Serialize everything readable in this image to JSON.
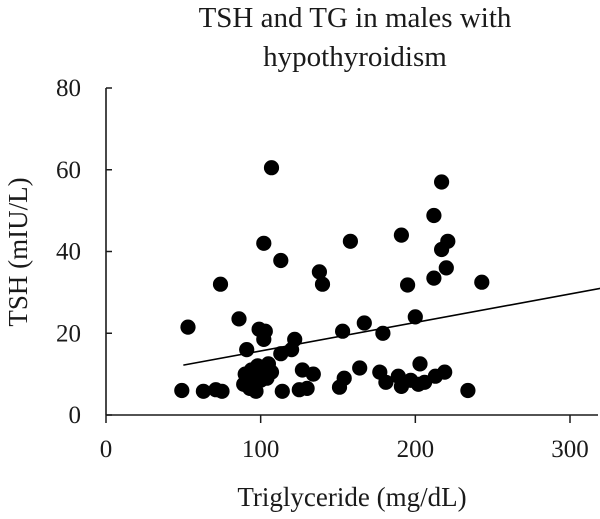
{
  "chart_data": {
    "type": "scatter",
    "title_lines": [
      "TSH and TG in males with",
      "hypothyroidism"
    ],
    "xlabel": "Triglyceride (mg/dL)",
    "ylabel": "TSH (mIU/L)",
    "xlim": [
      0,
      320
    ],
    "ylim": [
      0,
      80
    ],
    "xticks": [
      0,
      100,
      200,
      300
    ],
    "yticks": [
      0,
      20,
      40,
      60,
      80
    ],
    "grid": false,
    "legend": "none",
    "marker_color": "#000000",
    "series": [
      {
        "points": [
          [
            49,
            6
          ],
          [
            53,
            21.5
          ],
          [
            63,
            5.8
          ],
          [
            71,
            6.2
          ],
          [
            74,
            32
          ],
          [
            75,
            5.8
          ],
          [
            86,
            23.5
          ],
          [
            89,
            7.5
          ],
          [
            90,
            10
          ],
          [
            91,
            16
          ],
          [
            92,
            8
          ],
          [
            93,
            6.5
          ],
          [
            94,
            11
          ],
          [
            95,
            7
          ],
          [
            96,
            9
          ],
          [
            97,
            5.8
          ],
          [
            98,
            12
          ],
          [
            99,
            21
          ],
          [
            100,
            8.5
          ],
          [
            101,
            11
          ],
          [
            102,
            42
          ],
          [
            102,
            18.5
          ],
          [
            103,
            20.5
          ],
          [
            104,
            9
          ],
          [
            105,
            12.5
          ],
          [
            107,
            10.5
          ],
          [
            107,
            60.5
          ],
          [
            113,
            37.8
          ],
          [
            113,
            15
          ],
          [
            114,
            5.8
          ],
          [
            120,
            16
          ],
          [
            122,
            18.5
          ],
          [
            125,
            6.2
          ],
          [
            127,
            11
          ],
          [
            130,
            6.5
          ],
          [
            134,
            10
          ],
          [
            138,
            35
          ],
          [
            140,
            32
          ],
          [
            151,
            6.8
          ],
          [
            153,
            20.5
          ],
          [
            154,
            9
          ],
          [
            158,
            42.5
          ],
          [
            164,
            11.5
          ],
          [
            167,
            22.5
          ],
          [
            177,
            10.5
          ],
          [
            179,
            20
          ],
          [
            181,
            8
          ],
          [
            189,
            9.5
          ],
          [
            191,
            44
          ],
          [
            191,
            7
          ],
          [
            195,
            31.8
          ],
          [
            197,
            8.5
          ],
          [
            200,
            24
          ],
          [
            202,
            7.5
          ],
          [
            203,
            12.5
          ],
          [
            206,
            8
          ],
          [
            212,
            33.5
          ],
          [
            212,
            48.8
          ],
          [
            213,
            9.5
          ],
          [
            217,
            57
          ],
          [
            217,
            40.5
          ],
          [
            219,
            10.5
          ],
          [
            220,
            36
          ],
          [
            221,
            42.5
          ],
          [
            234,
            6
          ],
          [
            243,
            32.5
          ]
        ]
      }
    ],
    "trendline": {
      "x": [
        50,
        320
      ],
      "y": [
        12.2,
        31
      ]
    }
  }
}
